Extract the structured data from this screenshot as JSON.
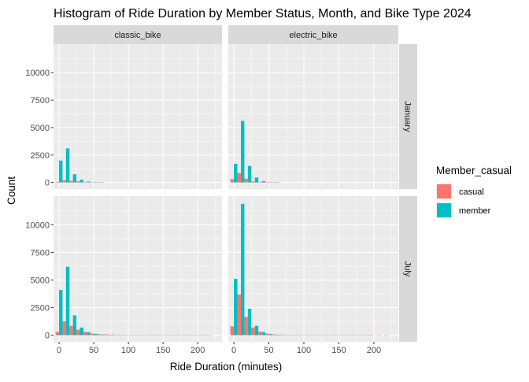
{
  "chart_data": {
    "type": "bar",
    "title": "Histogram of Ride Duration by Member Status, Month, and Bike Type 2024",
    "xlabel": "Ride Duration (minutes)",
    "ylabel": "Count",
    "xlim": [
      -8,
      235
    ],
    "ylim": [
      -600,
      12600
    ],
    "x_ticks": [
      0,
      50,
      100,
      150,
      200
    ],
    "y_ticks": [
      0,
      2500,
      5000,
      7500,
      10000
    ],
    "bin_width": 10,
    "dodge": true,
    "facet_columns": [
      "classic_bike",
      "electric_bike"
    ],
    "facet_rows": [
      "January",
      "July"
    ],
    "legend": {
      "title": "Member_casual",
      "position": "right",
      "entries": [
        {
          "name": "casual",
          "color": "#F8766D"
        },
        {
          "name": "member",
          "color": "#00BFC4"
        }
      ]
    },
    "x": [
      0,
      10,
      20,
      30,
      40,
      50,
      60,
      70,
      80,
      90,
      100,
      110,
      120,
      130,
      140,
      150,
      160,
      170,
      180,
      190,
      200,
      210,
      220
    ],
    "panels": [
      {
        "column": "classic_bike",
        "row": "January",
        "series": [
          {
            "name": "casual",
            "values": [
              50,
              200,
              150,
              100,
              40,
              10,
              5,
              0,
              0,
              0,
              0,
              0,
              0,
              0,
              0,
              0,
              0,
              0,
              0,
              0,
              0,
              0,
              0
            ]
          },
          {
            "name": "member",
            "values": [
              2000,
              3100,
              750,
              250,
              80,
              20,
              5,
              0,
              0,
              0,
              0,
              0,
              0,
              0,
              0,
              0,
              0,
              0,
              0,
              0,
              0,
              0,
              0
            ]
          }
        ]
      },
      {
        "column": "electric_bike",
        "row": "January",
        "series": [
          {
            "name": "casual",
            "values": [
              300,
              850,
              350,
              100,
              40,
              10,
              5,
              0,
              0,
              0,
              0,
              0,
              0,
              0,
              0,
              0,
              0,
              0,
              0,
              0,
              0,
              0,
              0
            ]
          },
          {
            "name": "member",
            "values": [
              1700,
              5600,
              1500,
              450,
              120,
              30,
              10,
              0,
              0,
              0,
              0,
              0,
              0,
              0,
              0,
              0,
              0,
              0,
              0,
              0,
              0,
              0,
              0
            ]
          }
        ]
      },
      {
        "column": "classic_bike",
        "row": "July",
        "series": [
          {
            "name": "casual",
            "values": [
              300,
              1250,
              850,
              500,
              300,
              150,
              100,
              80,
              60,
              40,
              30,
              30,
              20,
              20,
              20,
              15,
              15,
              15,
              15,
              15,
              15,
              15,
              10
            ]
          },
          {
            "name": "member",
            "values": [
              4100,
              6200,
              1800,
              700,
              280,
              120,
              60,
              40,
              20,
              15,
              10,
              10,
              5,
              5,
              5,
              5,
              5,
              5,
              5,
              5,
              5,
              5,
              0
            ]
          }
        ]
      },
      {
        "column": "electric_bike",
        "row": "July",
        "series": [
          {
            "name": "casual",
            "values": [
              800,
              3700,
              1650,
              700,
              320,
              150,
              80,
              60,
              40,
              30,
              25,
              20,
              20,
              15,
              15,
              15,
              15,
              15,
              15,
              15,
              15,
              15,
              10
            ]
          },
          {
            "name": "member",
            "values": [
              5100,
              11900,
              2400,
              850,
              280,
              100,
              40,
              20,
              10,
              5,
              5,
              5,
              5,
              5,
              5,
              5,
              5,
              5,
              5,
              5,
              0,
              0,
              0
            ]
          }
        ]
      }
    ]
  }
}
